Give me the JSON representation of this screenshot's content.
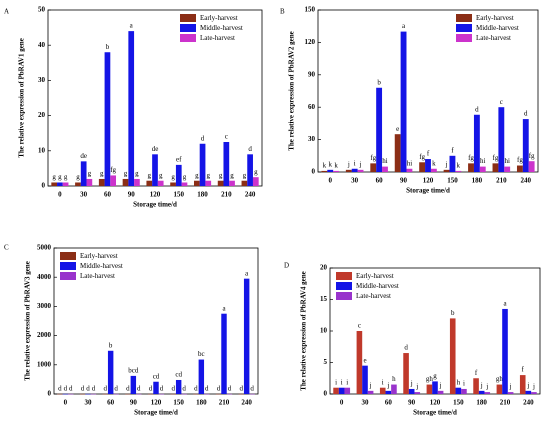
{
  "chart_data": [
    {
      "type": "bar",
      "panel": "A",
      "ylabel": "The relative expression of PbRAV1 gene",
      "xlabel": "Storage time/d",
      "categories": [
        "0",
        "30",
        "60",
        "90",
        "120",
        "150",
        "180",
        "210",
        "240"
      ],
      "ylim": [
        0,
        50
      ],
      "yticks": [
        0,
        10,
        20,
        30,
        40,
        50
      ],
      "legend": "upper right",
      "series": [
        {
          "name": "Early-harvest",
          "color": "#8b2e16",
          "values": [
            1,
            1,
            2,
            2,
            1.5,
            1,
            1.5,
            1.5,
            1.5
          ],
          "letters": [
            "g",
            "g",
            "g",
            "g",
            "g",
            "g",
            "g",
            "g",
            "g"
          ]
        },
        {
          "name": "Middle-harvest",
          "color": "#1414e6",
          "values": [
            1,
            7,
            38,
            44,
            9,
            6,
            12,
            12.5,
            9
          ],
          "letters": [
            "g",
            "de",
            "b",
            "a",
            "de",
            "ef",
            "d",
            "c",
            "d"
          ]
        },
        {
          "name": "Late-harvest",
          "color": "#cc33cc",
          "values": [
            1,
            2,
            3,
            2,
            1.5,
            1,
            1.5,
            1.5,
            2.5
          ],
          "letters": [
            "g",
            "g",
            "fg",
            "g",
            "g",
            "g",
            "g",
            "g",
            "g"
          ]
        }
      ]
    },
    {
      "type": "bar",
      "panel": "B",
      "ylabel": "The relative expression of PbRAV2 gene",
      "xlabel": "Storage time/d",
      "categories": [
        "0",
        "30",
        "60",
        "90",
        "120",
        "150",
        "180",
        "210",
        "240"
      ],
      "ylim": [
        0,
        150
      ],
      "yticks": [
        0,
        30,
        60,
        90,
        120,
        150
      ],
      "legend": "upper right",
      "series": [
        {
          "name": "Early-harvest",
          "color": "#8b2e16",
          "values": [
            1,
            2,
            8,
            35,
            9,
            2,
            8,
            8,
            6
          ],
          "letters": [
            "k",
            "j",
            "fg",
            "e",
            "fg",
            "j",
            "fg",
            "fg",
            "fg"
          ]
        },
        {
          "name": "Middle-harvest",
          "color": "#1414e6",
          "values": [
            2,
            3,
            78,
            130,
            12,
            15,
            53,
            60,
            49
          ],
          "letters": [
            "k",
            "i",
            "b",
            "a",
            "f",
            "f",
            "d",
            "c",
            "d"
          ]
        },
        {
          "name": "Late-harvest",
          "color": "#cc33cc",
          "values": [
            1,
            2,
            5,
            3,
            3,
            1,
            5,
            5,
            10
          ],
          "letters": [
            "k",
            "j",
            "hi",
            "hi",
            "k",
            "k",
            "hi",
            "hi",
            "fg"
          ]
        }
      ]
    },
    {
      "type": "bar",
      "panel": "C",
      "ylabel": "The relative expression of PbRAV3 gene",
      "xlabel": "Storage time/d",
      "categories": [
        "0",
        "30",
        "60",
        "90",
        "120",
        "150",
        "180",
        "210",
        "240"
      ],
      "ylim": [
        0,
        5000
      ],
      "yticks": [
        0,
        1000,
        2000,
        3000,
        4000,
        5000
      ],
      "legend": "upper left",
      "series": [
        {
          "name": "Early-harvest",
          "color": "#8b2e16",
          "values": [
            5,
            5,
            5,
            5,
            5,
            5,
            5,
            5,
            5
          ],
          "letters": [
            "d",
            "d",
            "d",
            "d",
            "d",
            "d",
            "d",
            "d",
            "d"
          ]
        },
        {
          "name": "Middle-harvest",
          "color": "#1414e6",
          "values": [
            5,
            5,
            1480,
            620,
            420,
            480,
            1180,
            2750,
            3950
          ],
          "letters": [
            "d",
            "d",
            "b",
            "bcd",
            "cd",
            "cd",
            "bc",
            "a",
            "a"
          ]
        },
        {
          "name": "Late-harvest",
          "color": "#9933cc",
          "values": [
            5,
            5,
            5,
            5,
            5,
            5,
            5,
            5,
            5
          ],
          "letters": [
            "d",
            "d",
            "d",
            "d",
            "d",
            "d",
            "d",
            "d",
            "d"
          ]
        }
      ]
    },
    {
      "type": "bar",
      "panel": "D",
      "ylabel": "The relative expression of PbRAV4 gene",
      "xlabel": "Storage time/d",
      "categories": [
        "0",
        "30",
        "60",
        "90",
        "120",
        "150",
        "180",
        "210",
        "240"
      ],
      "ylim": [
        0,
        20
      ],
      "yticks": [
        0,
        5,
        10,
        15,
        20
      ],
      "legend": "upper left",
      "series": [
        {
          "name": "Early-harvest",
          "color": "#c0392b",
          "values": [
            1,
            10,
            1,
            6.5,
            1.5,
            12,
            2.5,
            1.5,
            3
          ],
          "letters": [
            "i",
            "c",
            "i",
            "d",
            "gh",
            "b",
            "f",
            "gh",
            "f"
          ]
        },
        {
          "name": "Middle-harvest",
          "color": "#1414e6",
          "values": [
            1,
            4.5,
            0.5,
            0.8,
            2,
            1,
            0.5,
            13.5,
            0.5
          ],
          "letters": [
            "i",
            "e",
            "j",
            "j",
            "g",
            "h",
            "j",
            "a",
            "j"
          ]
        },
        {
          "name": "Late-harvest",
          "color": "#9933cc",
          "values": [
            1,
            0.5,
            1.5,
            0.3,
            0.5,
            0.8,
            0.3,
            0.3,
            0.3
          ],
          "letters": [
            "i",
            "j",
            "h",
            "j",
            "j",
            "i",
            "j",
            "j",
            "j"
          ]
        }
      ]
    }
  ]
}
